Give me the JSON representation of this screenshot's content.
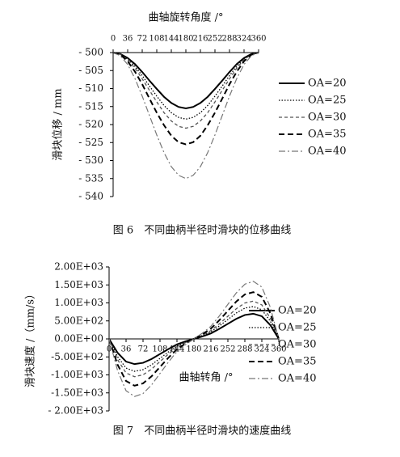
{
  "chart_data": [
    {
      "type": "line",
      "x_title": "曲轴旋转角度 /°",
      "y_title": "滑块位移 / mm",
      "caption": "图 6　不同曲柄半径时滑块的位移曲线",
      "x_axis_position": "top",
      "legend": "right",
      "x": [
        0,
        18,
        36,
        54,
        72,
        90,
        108,
        126,
        144,
        162,
        180,
        198,
        216,
        234,
        252,
        270,
        288,
        306,
        324,
        342,
        360
      ],
      "xlim": [
        0,
        360
      ],
      "xticks": [
        0,
        36,
        72,
        108,
        144,
        180,
        216,
        252,
        288,
        324,
        360
      ],
      "ylim": [
        -540,
        -500
      ],
      "yticks": [
        {
          "value": -500,
          "label": "- 500"
        },
        {
          "value": -505,
          "label": "- 505"
        },
        {
          "value": -510,
          "label": "- 510"
        },
        {
          "value": -515,
          "label": "- 515"
        },
        {
          "value": -520,
          "label": "- 520"
        },
        {
          "value": -525,
          "label": "- 525"
        },
        {
          "value": -530,
          "label": "- 530"
        },
        {
          "value": -535,
          "label": "- 535"
        },
        {
          "value": -540,
          "label": "- 540"
        }
      ],
      "series": [
        {
          "name": "OA=20",
          "color": "#000000",
          "style": "solid",
          "values": [
            -500,
            -500.4,
            -501.5,
            -503.2,
            -505.4,
            -507.8,
            -510.1,
            -512.3,
            -514.0,
            -515.1,
            -515.5,
            -515.1,
            -514.0,
            -512.3,
            -510.1,
            -507.8,
            -505.4,
            -503.2,
            -501.5,
            -500.4,
            -500
          ]
        },
        {
          "name": "OA=25",
          "color": "#000000",
          "style": "dotted",
          "values": [
            -500,
            -500.5,
            -501.8,
            -503.8,
            -506.4,
            -509.3,
            -512.1,
            -514.7,
            -516.7,
            -518.0,
            -518.5,
            -518.0,
            -516.7,
            -514.7,
            -512.1,
            -509.3,
            -506.4,
            -503.8,
            -501.8,
            -500.5,
            -500
          ]
        },
        {
          "name": "OA=30",
          "color": "#555555",
          "style": "dashed",
          "values": [
            -500,
            -500.5,
            -502.0,
            -504.3,
            -507.3,
            -510.5,
            -513.7,
            -516.7,
            -519.0,
            -520.5,
            -521,
            -520.5,
            -519.0,
            -516.7,
            -513.7,
            -510.5,
            -507.3,
            -504.3,
            -502.0,
            -500.5,
            -500
          ]
        },
        {
          "name": "OA=35",
          "color": "#000000",
          "style": "longdash",
          "values": [
            -500,
            -500.6,
            -502.4,
            -505.3,
            -508.8,
            -512.8,
            -516.7,
            -520.2,
            -523.1,
            -524.9,
            -525.5,
            -524.9,
            -523.1,
            -520.2,
            -516.7,
            -512.8,
            -508.8,
            -505.3,
            -502.4,
            -500.6,
            -500
          ]
        },
        {
          "name": "OA=40",
          "color": "#777777",
          "style": "dashdot",
          "values": [
            -500,
            -500.9,
            -503.3,
            -507.2,
            -512.1,
            -517.5,
            -522.9,
            -527.8,
            -531.7,
            -534.1,
            -535,
            -534.1,
            -531.7,
            -527.8,
            -522.9,
            -517.5,
            -512.1,
            -507.2,
            -503.3,
            -500.9,
            -500
          ]
        }
      ]
    },
    {
      "type": "line",
      "x_title": "曲轴转角 /°",
      "y_title": "滑块速度 /（mm/s）",
      "caption": "图 7　不同曲柄半径时滑块的速度曲线",
      "x_axis_position": "zero",
      "legend": "right",
      "x": [
        0,
        18,
        36,
        54,
        72,
        90,
        108,
        126,
        144,
        162,
        180,
        198,
        216,
        234,
        252,
        270,
        288,
        306,
        324,
        342,
        360
      ],
      "xlim": [
        0,
        360
      ],
      "xticks": [
        0,
        36,
        72,
        108,
        144,
        180,
        216,
        252,
        288,
        324,
        360
      ],
      "ylim": [
        -2000,
        2000
      ],
      "yticks": [
        {
          "value": 2000,
          "label": "2.00E+03"
        },
        {
          "value": 1500,
          "label": "1.50E+03"
        },
        {
          "value": 1000,
          "label": "1.00E+03"
        },
        {
          "value": 500,
          "label": "5.00E+02"
        },
        {
          "value": 0,
          "label": "0.00E+00"
        },
        {
          "value": -500,
          "label": "-5.00E+02"
        },
        {
          "value": -1000,
          "label": "-1.00E+03"
        },
        {
          "value": -1500,
          "label": "-1.50E+03"
        },
        {
          "value": -2000,
          "label": "- 2.00E+03"
        }
      ],
      "series": [
        {
          "name": "OA=20",
          "color": "#000000",
          "style": "solid",
          "values": [
            0,
            -385,
            -630,
            -700,
            -665,
            -560,
            -420,
            -280,
            -154,
            -70,
            0,
            70,
            154,
            280,
            420,
            560,
            665,
            700,
            630,
            385,
            0
          ]
        },
        {
          "name": "OA=25",
          "color": "#000000",
          "style": "dotted",
          "values": [
            0,
            -495,
            -810,
            -900,
            -855,
            -720,
            -540,
            -360,
            -198,
            -90,
            0,
            90,
            198,
            360,
            540,
            720,
            855,
            900,
            810,
            495,
            0
          ]
        },
        {
          "name": "OA=30",
          "color": "#555555",
          "style": "dashed",
          "values": [
            0,
            -578,
            -945,
            -1050,
            -998,
            -840,
            -630,
            -420,
            -231,
            -105,
            0,
            105,
            231,
            420,
            630,
            840,
            998,
            1050,
            945,
            578,
            0
          ]
        },
        {
          "name": "OA=35",
          "color": "#000000",
          "style": "longdash",
          "values": [
            0,
            -715,
            -1170,
            -1300,
            -1235,
            -1040,
            -780,
            -520,
            -286,
            -130,
            0,
            130,
            286,
            520,
            780,
            1040,
            1235,
            1300,
            1170,
            715,
            0
          ]
        },
        {
          "name": "OA=40",
          "color": "#777777",
          "style": "dashdot",
          "values": [
            0,
            -880,
            -1440,
            -1600,
            -1520,
            -1280,
            -960,
            -640,
            -352,
            -160,
            0,
            160,
            352,
            640,
            960,
            1280,
            1520,
            1600,
            1440,
            880,
            0
          ]
        }
      ]
    }
  ]
}
